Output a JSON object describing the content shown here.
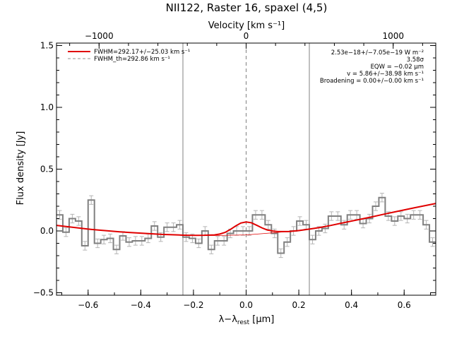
{
  "chart_data": {
    "type": "line",
    "title": "NII122, Raster 16, spaxel (4,5)",
    "xlabel_main": "λ−λ",
    "xlabel_sub": "rest",
    "xlabel_unit": " [μm]",
    "ylabel": "Flux density [Jy]",
    "top_axis_label": "Velocity [km s⁻¹]",
    "xlim": [
      -0.72,
      0.72
    ],
    "ylim": [
      -0.52,
      1.52
    ],
    "x_ticks": [
      -0.6,
      -0.4,
      -0.2,
      0.0,
      0.2,
      0.4,
      0.6
    ],
    "x_tick_labels": [
      "−0.6",
      "−0.4",
      "−0.2",
      "0.0",
      "0.2",
      "0.4",
      "0.6"
    ],
    "y_ticks": [
      -0.5,
      0.0,
      0.5,
      1.0,
      1.5
    ],
    "y_tick_labels": [
      "−0.5",
      "0.0",
      "0.5",
      "1.0",
      "1.5"
    ],
    "top_ticks_kms": [
      -1000,
      0,
      1000
    ],
    "top_tick_labels": [
      "−1000",
      "0",
      "1000"
    ],
    "km_per_um": 1791.0,
    "vertical_lines_x": [
      -0.24,
      0.24
    ],
    "center_line_x": 0.0,
    "colors": {
      "data": "#808080",
      "error": "#b4b4b4",
      "fit": "#e00000",
      "vline": "#808080"
    },
    "legend": [
      {
        "label": "FWHM=292.17+/−25.03 km s⁻¹",
        "style": "solid",
        "color": "#e00000"
      },
      {
        "label": "FWHM_th=292.86 km s⁻¹",
        "style": "dashed",
        "color": "#909090"
      }
    ],
    "annotations": [
      "2.53e−18+/−7.05e−19 W m⁻²",
      "3.58σ",
      "EQW = −0.02 μm",
      "v = 5.86+/−38.98 km s⁻¹",
      "Broadening = 0.00+/−0.00 km s⁻¹"
    ],
    "series": [
      {
        "type": "step",
        "bin_width": 0.024,
        "x": [
          -0.72,
          -0.696,
          -0.672,
          -0.648,
          -0.624,
          -0.6,
          -0.576,
          -0.552,
          -0.528,
          -0.504,
          -0.48,
          -0.456,
          -0.432,
          -0.408,
          -0.384,
          -0.36,
          -0.336,
          -0.312,
          -0.288,
          -0.264,
          -0.24,
          -0.216,
          -0.192,
          -0.168,
          -0.144,
          -0.12,
          -0.096,
          -0.072,
          -0.048,
          -0.024,
          0.0,
          0.024,
          0.048,
          0.072,
          0.096,
          0.12,
          0.144,
          0.168,
          0.192,
          0.216,
          0.24,
          0.264,
          0.288,
          0.312,
          0.336,
          0.36,
          0.384,
          0.408,
          0.432,
          0.456,
          0.48,
          0.504,
          0.528,
          0.552,
          0.576,
          0.6,
          0.624,
          0.648,
          0.672,
          0.696
        ],
        "y": [
          0.13,
          -0.01,
          0.1,
          0.08,
          -0.12,
          0.25,
          -0.1,
          -0.07,
          -0.06,
          -0.15,
          -0.04,
          -0.09,
          -0.08,
          -0.08,
          -0.06,
          0.04,
          -0.05,
          0.03,
          0.03,
          0.05,
          -0.05,
          -0.06,
          -0.1,
          0.0,
          -0.15,
          -0.08,
          -0.08,
          -0.02,
          0.0,
          0.0,
          0.0,
          0.13,
          0.13,
          0.05,
          -0.02,
          -0.18,
          -0.09,
          0.0,
          0.08,
          0.05,
          -0.07,
          0.0,
          0.02,
          0.12,
          0.12,
          0.05,
          0.13,
          0.13,
          0.06,
          0.1,
          0.2,
          0.27,
          0.12,
          0.08,
          0.12,
          0.1,
          0.13,
          0.13,
          0.05,
          -0.09
        ],
        "error": 0.035
      },
      {
        "type": "fit",
        "x": [
          -0.72,
          -0.68,
          -0.64,
          -0.6,
          -0.56,
          -0.52,
          -0.48,
          -0.44,
          -0.4,
          -0.36,
          -0.32,
          -0.28,
          -0.24,
          -0.2,
          -0.16,
          -0.12,
          -0.1,
          -0.08,
          -0.06,
          -0.04,
          -0.02,
          0.0,
          0.02,
          0.04,
          0.06,
          0.08,
          0.1,
          0.12,
          0.16,
          0.2,
          0.24,
          0.28,
          0.32,
          0.36,
          0.4,
          0.44,
          0.48,
          0.52,
          0.56,
          0.6,
          0.64,
          0.68,
          0.72
        ],
        "y": [
          0.045,
          0.035,
          0.025,
          0.015,
          0.007,
          0.0,
          -0.007,
          -0.013,
          -0.018,
          -0.023,
          -0.028,
          -0.031,
          -0.034,
          -0.036,
          -0.035,
          -0.032,
          -0.025,
          -0.012,
          0.012,
          0.04,
          0.064,
          0.073,
          0.066,
          0.046,
          0.025,
          0.008,
          0.0,
          -0.005,
          -0.005,
          0.003,
          0.015,
          0.028,
          0.044,
          0.062,
          0.08,
          0.097,
          0.115,
          0.134,
          0.152,
          0.17,
          0.188,
          0.205,
          0.222
        ]
      },
      {
        "type": "baseline",
        "x": [
          -0.72,
          -0.6,
          -0.48,
          -0.36,
          -0.24,
          -0.12,
          0.0,
          0.12,
          0.24,
          0.36,
          0.48,
          0.6,
          0.72
        ],
        "y": [
          0.045,
          0.015,
          -0.007,
          -0.023,
          -0.034,
          -0.037,
          -0.032,
          -0.012,
          0.015,
          0.062,
          0.115,
          0.17,
          0.222
        ]
      }
    ]
  }
}
